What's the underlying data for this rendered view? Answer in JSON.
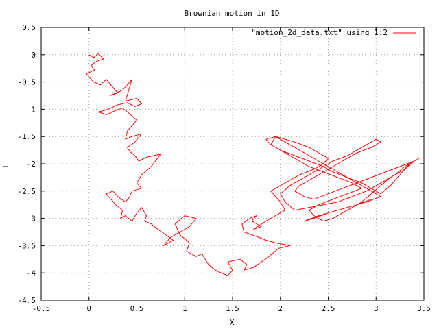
{
  "chart_data": {
    "type": "line",
    "title": "Brownian motion in 1D",
    "xlabel": "X",
    "ylabel": "T",
    "xlim": [
      -0.5,
      3.5
    ],
    "ylim": [
      -4.5,
      0.5
    ],
    "x_ticks": [
      "-0.5",
      "0",
      "0.5",
      "1",
      "1.5",
      "2",
      "2.5",
      "3",
      "3.5"
    ],
    "y_ticks": [
      "0.5",
      "0",
      "-0.5",
      "-1",
      "-1.5",
      "-2",
      "-2.5",
      "-3",
      "-3.5",
      "-4",
      "-4.5"
    ],
    "x_tick_values": [
      -0.5,
      0,
      0.5,
      1,
      1.5,
      2,
      2.5,
      3,
      3.5
    ],
    "y_tick_values": [
      0.5,
      0,
      -0.5,
      -1,
      -1.5,
      -2,
      -2.5,
      -3,
      -3.5,
      -4,
      -4.5
    ],
    "grid": true,
    "legend_position": "top-right",
    "series": [
      {
        "name": "\"motion_2d_data.txt\" using 1:2",
        "color": "#ff0000",
        "x": [
          0.0,
          0.05,
          0.1,
          0.15,
          0.08,
          0.02,
          0.06,
          -0.03,
          0.05,
          0.12,
          0.18,
          0.25,
          0.3,
          0.22,
          0.35,
          0.4,
          0.45,
          0.38,
          0.5,
          0.55,
          0.48,
          0.4,
          0.3,
          0.2,
          0.1,
          0.18,
          0.28,
          0.35,
          0.42,
          0.5,
          0.45,
          0.4,
          0.38,
          0.45,
          0.55,
          0.48,
          0.4,
          0.43,
          0.48,
          0.52,
          0.6,
          0.75,
          0.65,
          0.55,
          0.5,
          0.55,
          0.45,
          0.42,
          0.38,
          0.3,
          0.25,
          0.18,
          0.28,
          0.35,
          0.33,
          0.38,
          0.45,
          0.5,
          0.55,
          0.6,
          0.58,
          0.65,
          0.72,
          0.8,
          0.88,
          0.78,
          0.85,
          0.95,
          1.05,
          1.12,
          1.0,
          0.9,
          0.95,
          1.05,
          1.02,
          1.12,
          1.18,
          1.25,
          1.32,
          1.38,
          1.45,
          1.5,
          1.45,
          1.58,
          1.65,
          1.62,
          1.72,
          1.8,
          1.88,
          1.98,
          2.1,
          1.95,
          1.85,
          1.78,
          1.7,
          1.62,
          1.6,
          1.68,
          1.75,
          1.7,
          1.8,
          1.72,
          1.85,
          1.95,
          2.05,
          2.0,
          1.95,
          1.9,
          2.0,
          2.1,
          2.2,
          2.35,
          2.45,
          2.5,
          2.4,
          2.3,
          2.15,
          2.05,
          1.95,
          1.9,
          2.0,
          2.15,
          2.3,
          2.45,
          2.55,
          2.7,
          2.85,
          2.95,
          3.05,
          3.15,
          3.25,
          3.35,
          3.45,
          3.3,
          3.2,
          3.05,
          2.9,
          2.75,
          2.6,
          2.45,
          2.3,
          2.15,
          2.05,
          2.0,
          2.1,
          2.25,
          2.4,
          2.55,
          2.7,
          2.8,
          2.9,
          3.0,
          3.05,
          2.95,
          2.8,
          2.7,
          2.6,
          2.5,
          2.4,
          2.3,
          2.2,
          2.15,
          2.25,
          2.35,
          2.5,
          2.65,
          2.8,
          2.95,
          3.1,
          3.25,
          3.4,
          3.3,
          3.15,
          3.05,
          2.95,
          2.85,
          2.75,
          2.65,
          2.55,
          2.45,
          2.35,
          2.3,
          2.4,
          2.55,
          2.7,
          2.85,
          2.75,
          2.6,
          2.45,
          2.3,
          2.2,
          2.1,
          2.0,
          1.9,
          1.85,
          1.95,
          2.05,
          2.15,
          2.25,
          2.35,
          2.45,
          2.55,
          2.65,
          2.75,
          2.85,
          2.95,
          3.05,
          2.9,
          2.7,
          2.5,
          2.35,
          2.25,
          2.4,
          2.6,
          2.8,
          2.95
        ],
        "y": [
          0.0,
          -0.05,
          0.02,
          -0.08,
          -0.12,
          -0.2,
          -0.28,
          -0.35,
          -0.5,
          -0.55,
          -0.45,
          -0.6,
          -0.7,
          -0.75,
          -0.65,
          -0.55,
          -0.45,
          -0.85,
          -0.8,
          -0.9,
          -0.95,
          -0.88,
          -0.92,
          -1.0,
          -1.05,
          -1.1,
          -1.02,
          -0.98,
          -1.08,
          -1.2,
          -1.3,
          -1.4,
          -1.55,
          -1.5,
          -1.45,
          -1.6,
          -1.7,
          -1.78,
          -1.85,
          -1.95,
          -1.88,
          -1.82,
          -2.05,
          -2.2,
          -2.35,
          -2.45,
          -2.5,
          -2.62,
          -2.7,
          -2.6,
          -2.5,
          -2.55,
          -2.75,
          -2.85,
          -3.0,
          -2.95,
          -3.05,
          -2.9,
          -2.8,
          -2.95,
          -3.05,
          -3.1,
          -3.2,
          -3.3,
          -3.4,
          -3.5,
          -3.35,
          -3.25,
          -3.15,
          -3.0,
          -2.95,
          -3.1,
          -3.3,
          -3.45,
          -3.6,
          -3.7,
          -3.65,
          -3.85,
          -3.95,
          -4.0,
          -4.05,
          -3.95,
          -3.8,
          -3.75,
          -3.85,
          -3.95,
          -3.9,
          -3.8,
          -3.7,
          -3.55,
          -3.5,
          -3.45,
          -3.4,
          -3.35,
          -3.3,
          -3.25,
          -3.1,
          -3.0,
          -2.95,
          -3.05,
          -3.15,
          -3.2,
          -3.05,
          -2.95,
          -2.85,
          -2.7,
          -2.6,
          -2.5,
          -2.4,
          -2.3,
          -2.2,
          -2.1,
          -2.0,
          -1.9,
          -1.8,
          -1.7,
          -1.6,
          -1.55,
          -1.5,
          -1.65,
          -1.75,
          -1.85,
          -1.95,
          -2.05,
          -2.15,
          -2.25,
          -2.35,
          -2.45,
          -2.55,
          -2.4,
          -2.2,
          -2.0,
          -1.9,
          -2.05,
          -2.2,
          -2.35,
          -2.5,
          -2.6,
          -2.7,
          -2.75,
          -2.8,
          -2.85,
          -2.7,
          -2.55,
          -2.4,
          -2.25,
          -2.1,
          -1.95,
          -1.85,
          -1.75,
          -1.65,
          -1.55,
          -1.6,
          -1.7,
          -1.8,
          -1.9,
          -2.0,
          -2.1,
          -2.2,
          -2.3,
          -2.4,
          -2.5,
          -2.6,
          -2.65,
          -2.55,
          -2.45,
          -2.35,
          -2.25,
          -2.15,
          -2.05,
          -1.95,
          -2.1,
          -2.25,
          -2.4,
          -2.55,
          -2.7,
          -2.8,
          -2.9,
          -3.0,
          -3.05,
          -2.95,
          -2.85,
          -2.75,
          -2.65,
          -2.55,
          -2.45,
          -2.35,
          -2.25,
          -2.15,
          -2.05,
          -1.95,
          -1.85,
          -1.75,
          -1.65,
          -1.55,
          -1.5,
          -1.6,
          -1.7,
          -1.8,
          -1.9,
          -2.0,
          -2.1,
          -2.2,
          -2.3,
          -2.4,
          -2.5,
          -2.6,
          -2.7,
          -2.8,
          -2.9,
          -3.0,
          -3.05,
          -2.95,
          -2.85,
          -2.75,
          -2.65
        ]
      }
    ]
  }
}
